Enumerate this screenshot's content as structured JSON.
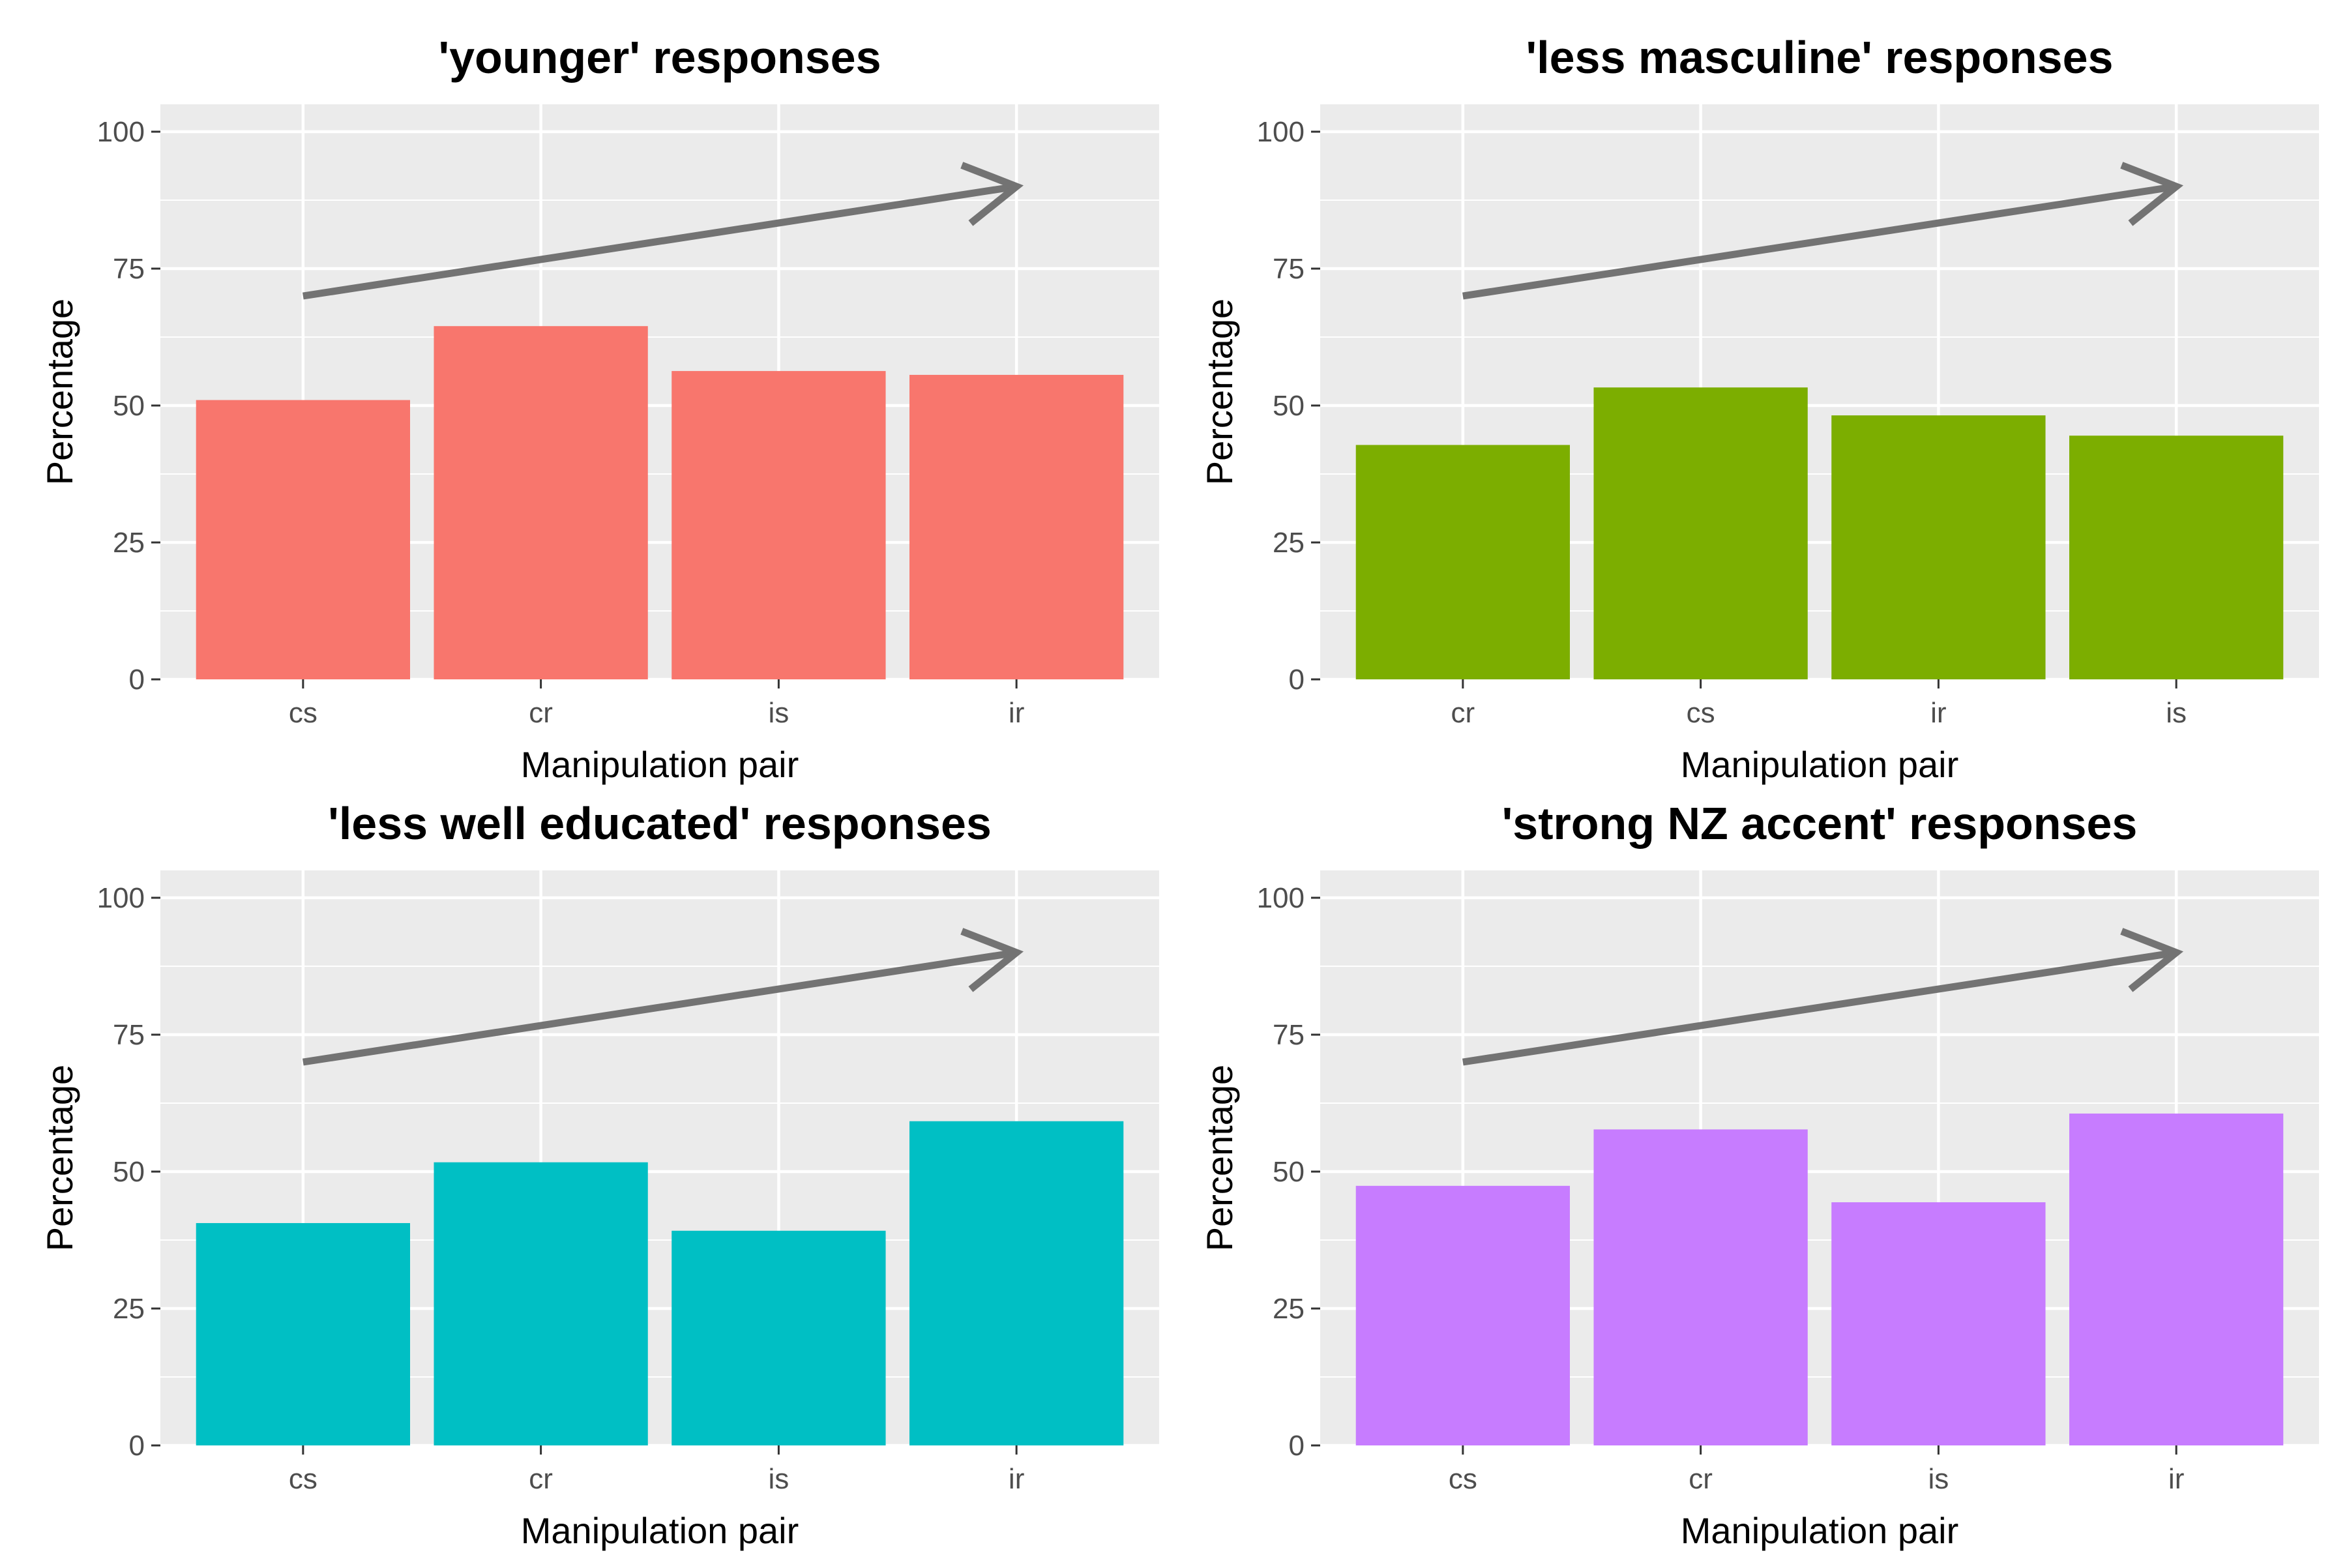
{
  "chart_data": [
    {
      "type": "bar",
      "title": "'younger' responses",
      "xlabel": "Manipulation pair",
      "ylabel": "Percentage",
      "categories": [
        "cs",
        "cr",
        "is",
        "ir"
      ],
      "values": [
        51,
        64.5,
        56.3,
        55.6
      ],
      "ylim": [
        0,
        105
      ],
      "yticks": [
        "0",
        "25",
        "50",
        "75",
        "100"
      ],
      "color": "#F8766D",
      "arrow": {
        "from": [
          1,
          70
        ],
        "to": [
          4,
          90
        ],
        "color": "#737373"
      },
      "grid": true
    },
    {
      "type": "bar",
      "title": "'less masculine' responses",
      "xlabel": "Manipulation pair",
      "ylabel": "Percentage",
      "categories": [
        "cr",
        "cs",
        "ir",
        "is"
      ],
      "values": [
        42.8,
        53.3,
        48.2,
        44.5
      ],
      "ylim": [
        0,
        105
      ],
      "yticks": [
        "0",
        "25",
        "50",
        "75",
        "100"
      ],
      "color": "#7CAE00",
      "arrow": {
        "from": [
          1,
          70
        ],
        "to": [
          4,
          90
        ],
        "color": "#737373"
      },
      "grid": true
    },
    {
      "type": "bar",
      "title": "'less well educated' responses",
      "xlabel": "Manipulation pair",
      "ylabel": "Percentage",
      "categories": [
        "cs",
        "cr",
        "is",
        "ir"
      ],
      "values": [
        40.6,
        51.7,
        39.2,
        59.2
      ],
      "ylim": [
        0,
        105
      ],
      "yticks": [
        "0",
        "25",
        "50",
        "75",
        "100"
      ],
      "color": "#00BFC4",
      "arrow": {
        "from": [
          1,
          70
        ],
        "to": [
          4,
          90
        ],
        "color": "#737373"
      },
      "grid": true
    },
    {
      "type": "bar",
      "title": "'strong NZ accent' responses",
      "xlabel": "Manipulation pair",
      "ylabel": "Percentage",
      "categories": [
        "cs",
        "cr",
        "is",
        "ir"
      ],
      "values": [
        47.4,
        57.7,
        44.4,
        60.6
      ],
      "ylim": [
        0,
        105
      ],
      "yticks": [
        "0",
        "25",
        "50",
        "75",
        "100"
      ],
      "color": "#C77CFF",
      "arrow": {
        "from": [
          1,
          70
        ],
        "to": [
          4,
          90
        ],
        "color": "#737373"
      },
      "grid": true
    }
  ]
}
